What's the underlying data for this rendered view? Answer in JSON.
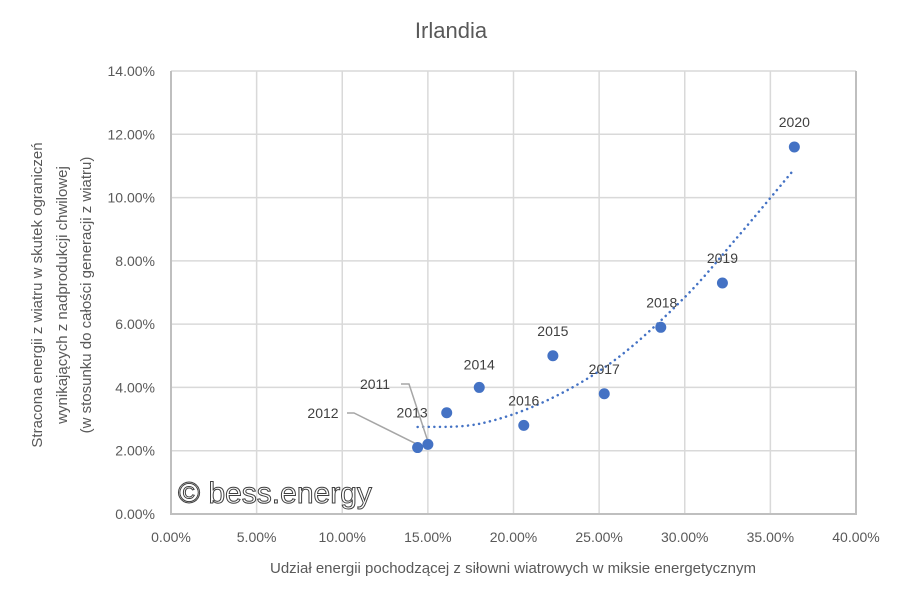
{
  "chart_data": {
    "type": "scatter",
    "title": "Irlandia",
    "xlabel": "Udział energii pochodzącej z siłowni wiatrowych w miksie energetycznym",
    "ylabel_lines": [
      "Stracona energii z wiatru w skutek ograniczeń",
      "wynikających z nadprodukcji chwilowej",
      "(w stosunku do całości generacji z wiatru)"
    ],
    "xlim": [
      0,
      40
    ],
    "ylim": [
      0,
      14
    ],
    "x_unit": "%",
    "y_unit": "%",
    "grid": true,
    "x_ticks": [
      0,
      5,
      10,
      15,
      20,
      25,
      30,
      35,
      40
    ],
    "y_ticks": [
      0,
      2,
      4,
      6,
      8,
      10,
      12,
      14
    ],
    "x_tick_labels": [
      "0.00%",
      "5.00%",
      "10.00%",
      "15.00%",
      "20.00%",
      "25.00%",
      "30.00%",
      "35.00%",
      "40.00%"
    ],
    "y_tick_labels": [
      "0.00%",
      "2.00%",
      "4.00%",
      "6.00%",
      "8.00%",
      "10.00%",
      "12.00%",
      "14.00%"
    ],
    "series": [
      {
        "name": "Irlandia",
        "color": "#4472c4",
        "points": [
          {
            "label": "2011",
            "x": 15.0,
            "y": 2.2
          },
          {
            "label": "2012",
            "x": 14.4,
            "y": 2.1
          },
          {
            "label": "2013",
            "x": 16.1,
            "y": 3.2
          },
          {
            "label": "2014",
            "x": 18.0,
            "y": 4.0
          },
          {
            "label": "2015",
            "x": 22.3,
            "y": 5.0
          },
          {
            "label": "2016",
            "x": 20.6,
            "y": 2.8
          },
          {
            "label": "2017",
            "x": 25.3,
            "y": 3.8
          },
          {
            "label": "2018",
            "x": 28.6,
            "y": 5.9
          },
          {
            "label": "2019",
            "x": 32.2,
            "y": 7.3
          },
          {
            "label": "2020",
            "x": 36.4,
            "y": 11.6
          }
        ]
      }
    ],
    "trendline": {
      "type": "polynomial",
      "style": "dotted",
      "color": "#4472c4",
      "x_range": [
        14.4,
        36.4
      ],
      "samples": [
        {
          "x": 14.4,
          "y": 2.75
        },
        {
          "x": 18.0,
          "y": 2.85
        },
        {
          "x": 22.0,
          "y": 3.6
        },
        {
          "x": 26.0,
          "y": 4.9
        },
        {
          "x": 30.0,
          "y": 6.85
        },
        {
          "x": 33.0,
          "y": 8.7
        },
        {
          "x": 36.4,
          "y": 10.9
        }
      ]
    }
  },
  "watermark": "© bess.energy"
}
